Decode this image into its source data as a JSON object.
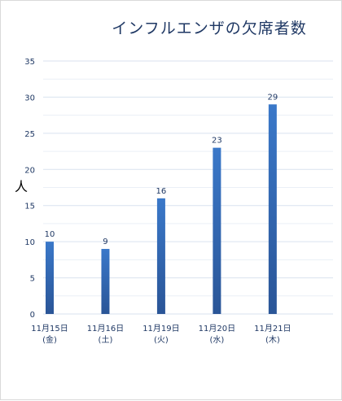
{
  "chart_data": {
    "type": "bar",
    "title": "インフルエンザの欠席者数",
    "ylabel": "人",
    "xlabel": "",
    "categories": [
      {
        "line1": "11月15日",
        "line2": "(金)"
      },
      {
        "line1": "11月16日",
        "line2": "(土)"
      },
      {
        "line1": "11月19日",
        "line2": "(火)"
      },
      {
        "line1": "11月20日",
        "line2": "(水)"
      },
      {
        "line1": "11月21日",
        "line2": "(木)"
      }
    ],
    "values": [
      10,
      9,
      16,
      23,
      29
    ],
    "ylim": [
      0,
      35
    ],
    "yticks": [
      0,
      5,
      10,
      15,
      20,
      25,
      30,
      35
    ],
    "grid": true,
    "legend": "none",
    "colors": {
      "bar_top": "#3a78c9",
      "bar_bottom": "#2a5597",
      "grid": "#d9e2ef",
      "text": "#1f3864"
    }
  }
}
